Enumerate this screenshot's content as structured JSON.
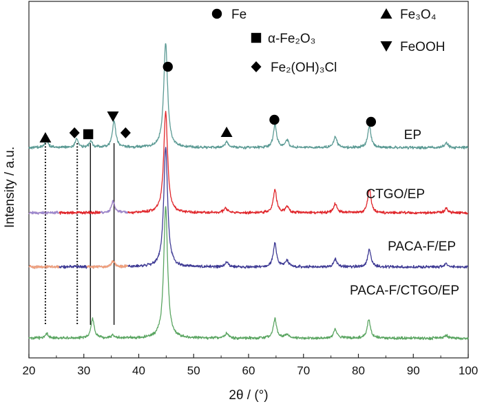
{
  "chart_data": {
    "type": "line",
    "title": "",
    "xlabel": "2θ / (°)",
    "ylabel": "Intensity / a.u.",
    "xlim": [
      20,
      100
    ],
    "xticks": [
      "20",
      "30",
      "40",
      "50",
      "60",
      "70",
      "80",
      "90",
      "100"
    ],
    "yticks": [],
    "grid": false,
    "series": [
      {
        "name": "EP",
        "color": "#5b9a94",
        "baseline": 3.42,
        "peaks": [
          [
            23.2,
            0.12
          ],
          [
            28.7,
            0.14
          ],
          [
            31.3,
            0.1
          ],
          [
            35.5,
            0.45
          ],
          [
            44.9,
            1.7
          ],
          [
            56.0,
            0.1
          ],
          [
            64.8,
            0.38
          ],
          [
            67.0,
            0.12
          ],
          [
            75.8,
            0.17
          ],
          [
            82.0,
            0.35
          ],
          [
            96.0,
            0.08
          ]
        ]
      },
      {
        "name": "CTGO/EP",
        "color": "#e0262b",
        "baseline": 2.36,
        "overlays": [
          {
            "x_range": [
              20,
              25.5
            ],
            "color": "#9a8ad0"
          },
          {
            "x_range": [
              25.5,
              33
            ],
            "color": "#e0262b"
          },
          {
            "x_range": [
              33,
              38
            ],
            "color": "#9a8ad0"
          }
        ],
        "peaks": [
          [
            35.3,
            0.18
          ],
          [
            44.9,
            1.65
          ],
          [
            55.8,
            0.08
          ],
          [
            64.8,
            0.38
          ],
          [
            67.0,
            0.1
          ],
          [
            75.8,
            0.15
          ],
          [
            82.0,
            0.38
          ],
          [
            96.0,
            0.07
          ]
        ]
      },
      {
        "name": "PACA-F/EP",
        "color": "#3e3a94",
        "baseline": 1.48,
        "overlays": [
          {
            "x_range": [
              20,
              25.5
            ],
            "color": "#f2a07a"
          },
          {
            "x_range": [
              25.5,
              30.5
            ],
            "color": "#3e3a94"
          },
          {
            "x_range": [
              30.5,
              38
            ],
            "color": "#f2a07a"
          }
        ],
        "peaks": [
          [
            35.3,
            0.1
          ],
          [
            44.9,
            1.95
          ],
          [
            56.0,
            0.08
          ],
          [
            64.8,
            0.38
          ],
          [
            67.0,
            0.1
          ],
          [
            75.8,
            0.12
          ],
          [
            82.0,
            0.28
          ],
          [
            96.0,
            0.05
          ]
        ]
      },
      {
        "name": "PACA-F/CTGO/EP",
        "color": "#5aa561",
        "baseline": 0.32,
        "peaks": [
          [
            23.2,
            0.08
          ],
          [
            31.6,
            0.32
          ],
          [
            35.3,
            0.05
          ],
          [
            44.9,
            2.15
          ],
          [
            56.0,
            0.08
          ],
          [
            64.8,
            0.32
          ],
          [
            67.0,
            0.06
          ],
          [
            75.8,
            0.15
          ],
          [
            81.9,
            0.3
          ],
          [
            96.0,
            0.05
          ]
        ]
      }
    ],
    "legend": [
      {
        "marker": "circle",
        "label": "Fe"
      },
      {
        "marker": "square",
        "label": "α-Fe₂O₃"
      },
      {
        "marker": "diamond",
        "label": "Fe₂(OH)₃Cl"
      },
      {
        "marker": "triangle-up",
        "label": "Fe₃O₄"
      },
      {
        "marker": "triangle-down",
        "label": "FeOOH"
      }
    ],
    "annotations": [
      {
        "marker": "triangle-up",
        "x": 23.0
      },
      {
        "marker": "diamond",
        "x": 28.3
      },
      {
        "marker": "square",
        "x": 30.8
      },
      {
        "marker": "triangle-down",
        "x": 35.3
      },
      {
        "marker": "diamond",
        "x": 37.6
      },
      {
        "marker": "circle",
        "x": 45.3
      },
      {
        "marker": "triangle-up",
        "x": 56.0
      },
      {
        "marker": "circle",
        "x": 64.7
      },
      {
        "marker": "circle",
        "x": 82.3
      }
    ],
    "reference_lines": [
      {
        "x": 23.0,
        "style": "dotted"
      },
      {
        "x": 28.8,
        "style": "dotted"
      },
      {
        "x": 31.2,
        "style": "solid"
      },
      {
        "x": 35.5,
        "style": "solid"
      }
    ]
  }
}
